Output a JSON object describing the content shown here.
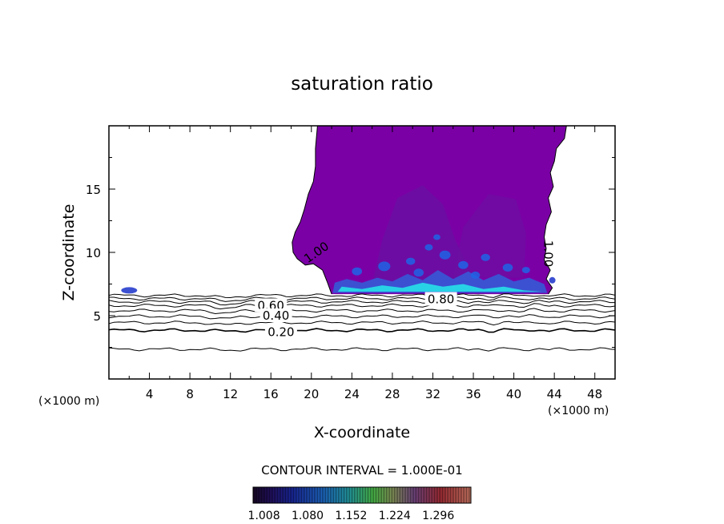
{
  "chart_data": {
    "type": "heatmap",
    "title": "saturation ratio",
    "xlabel": "X-coordinate",
    "ylabel": "Z-coordinate",
    "x_unit_left": "(×1000 m)",
    "x_unit_right": "(×1000 m)",
    "xlim": [
      0,
      50
    ],
    "ylim": [
      0,
      20
    ],
    "x_ticks": [
      4,
      8,
      12,
      16,
      20,
      24,
      28,
      32,
      36,
      40,
      44,
      48
    ],
    "y_ticks": [
      5,
      10,
      15
    ],
    "x_tick_labels": [
      "4",
      "8",
      "12",
      "16",
      "20",
      "24",
      "28",
      "32",
      "36",
      "40",
      "44",
      "48"
    ],
    "y_tick_labels": [
      "5",
      "10",
      "15"
    ],
    "contour_interval_text": "CONTOUR INTERVAL = 1.000E-01",
    "contour_labels": [
      {
        "text": "1.00",
        "x": 20.5,
        "z": 10.0,
        "rotate": -35
      },
      {
        "text": "1.00",
        "x": 43.4,
        "z": 9.9,
        "rotate": 90
      },
      {
        "text": "0.80",
        "x": 32.8,
        "z": 6.3,
        "rotate": 0
      },
      {
        "text": "0.60",
        "x": 16.0,
        "z": 5.8,
        "rotate": 0
      },
      {
        "text": "0.40",
        "x": 16.5,
        "z": 5.0,
        "rotate": 0
      },
      {
        "text": "0.20",
        "x": 17.0,
        "z": 3.7,
        "rotate": 0
      }
    ],
    "contour_lines_z": [
      6.6,
      6.35,
      6.1,
      5.8,
      5.4,
      4.95,
      4.45,
      3.85,
      2.35
    ],
    "colorbar": {
      "min": 0.99,
      "max": 1.35,
      "tick_values": [
        1.008,
        1.08,
        1.152,
        1.224,
        1.296
      ],
      "tick_labels": [
        "1.008",
        "1.080",
        "1.152",
        "1.224",
        "1.296"
      ]
    },
    "colors": {
      "saturated_fill": "#7a00a6",
      "inner_fill": "#6a10a0",
      "high_fill": "#1e64e6",
      "peak_fill": "#28d2e6",
      "cloud_edge_fill": "#3c50d2"
    }
  }
}
